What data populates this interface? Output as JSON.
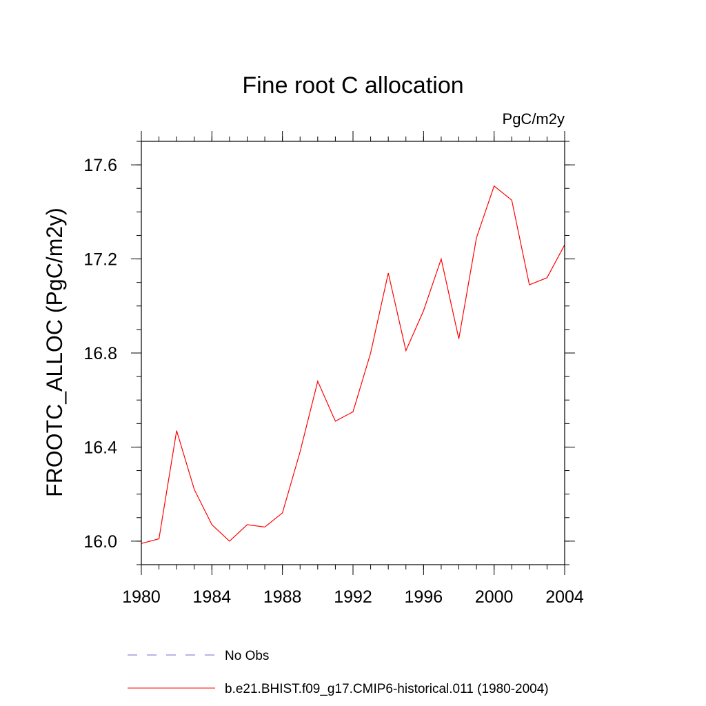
{
  "chart_data": {
    "type": "line",
    "title": "Fine root C allocation",
    "units_label": "PgC/m2y",
    "ylabel": "FROOTC_ALLOC  (PgC/m2y)",
    "xlabel": "",
    "xlim": [
      1980,
      2004
    ],
    "ylim": [
      15.9,
      17.7
    ],
    "x_ticks": [
      "1980",
      "1984",
      "1988",
      "1992",
      "1996",
      "2000",
      "2004"
    ],
    "y_ticks": [
      "16.0",
      "16.4",
      "16.8",
      "17.2",
      "17.6"
    ],
    "x_minor_step": 1,
    "y_minor_step": 0.1,
    "grid": false,
    "legend_position": "bottom",
    "series": [
      {
        "name": "b.e21.BHIST.f09_g17.CMIP6-historical.011 (1980-2004)",
        "color": "#ff0000",
        "style": "solid",
        "x": [
          1980,
          1981,
          1982,
          1983,
          1984,
          1985,
          1986,
          1987,
          1988,
          1989,
          1990,
          1991,
          1992,
          1993,
          1994,
          1995,
          1996,
          1997,
          1998,
          1999,
          2000,
          2001,
          2002,
          2003,
          2004
        ],
        "values": [
          15.99,
          16.01,
          16.47,
          16.22,
          16.07,
          16.0,
          16.07,
          16.06,
          16.12,
          16.38,
          16.68,
          16.51,
          16.55,
          16.8,
          17.14,
          16.81,
          16.98,
          17.2,
          16.86,
          17.29,
          17.51,
          17.45,
          17.09,
          17.12,
          17.26
        ]
      }
    ],
    "legend": [
      {
        "label": "No Obs",
        "color": "#6b6bd6",
        "style": "dashed"
      },
      {
        "label": "b.e21.BHIST.f09_g17.CMIP6-historical.011 (1980-2004)",
        "color": "#ff0000",
        "style": "solid"
      }
    ]
  }
}
